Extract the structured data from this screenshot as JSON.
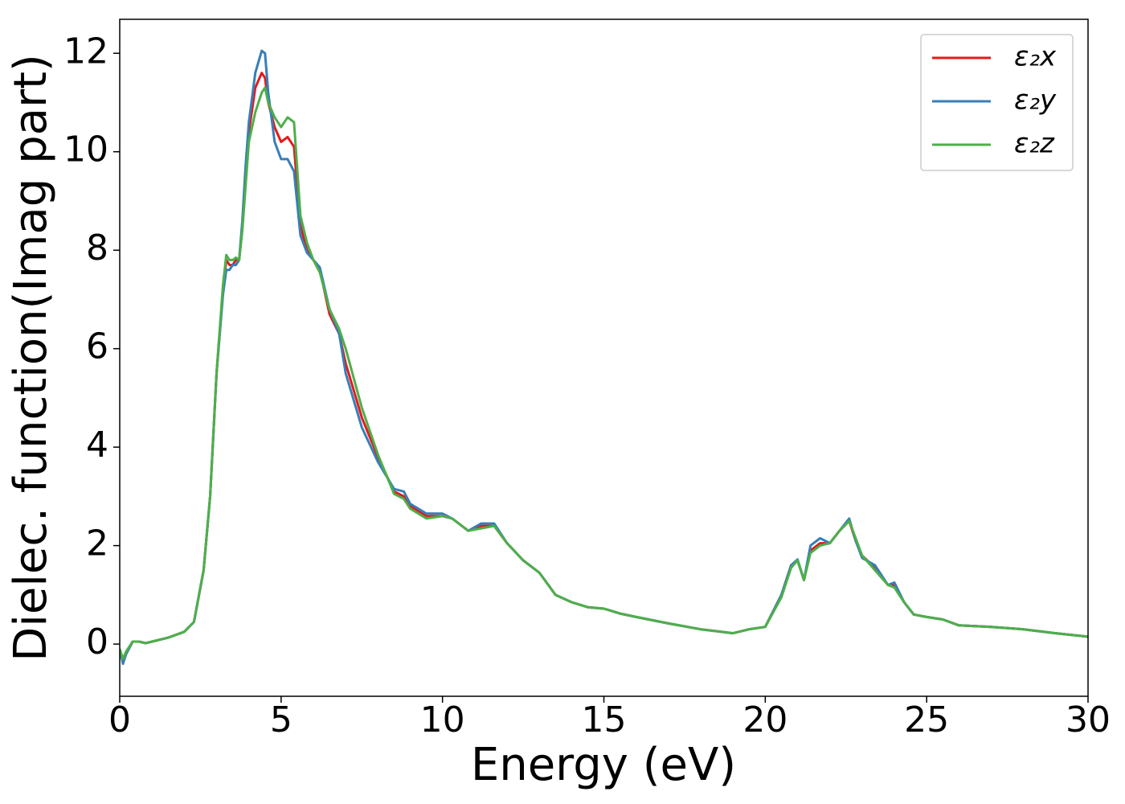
{
  "chart_data": {
    "type": "line",
    "xlabel": "Energy (eV)",
    "ylabel": "Dielec. function(Imag part)",
    "x": [
      0,
      0.1,
      0.2,
      0.4,
      0.6,
      0.8,
      1.0,
      1.5,
      2.0,
      2.3,
      2.6,
      2.8,
      3.0,
      3.2,
      3.3,
      3.4,
      3.5,
      3.6,
      3.7,
      3.8,
      3.9,
      4.0,
      4.2,
      4.4,
      4.5,
      4.6,
      4.8,
      5.0,
      5.2,
      5.4,
      5.6,
      5.8,
      6.0,
      6.2,
      6.5,
      6.8,
      7.0,
      7.5,
      8.0,
      8.5,
      8.8,
      9.0,
      9.5,
      10.0,
      10.3,
      10.8,
      11.2,
      11.6,
      12.0,
      12.5,
      13.0,
      13.5,
      14,
      14.5,
      15,
      15.5,
      16,
      17,
      18,
      19,
      19.5,
      20,
      20.5,
      20.8,
      21.0,
      21.2,
      21.4,
      21.7,
      22.0,
      22.3,
      22.6,
      22.8,
      23.0,
      23.4,
      23.8,
      24.0,
      24.3,
      24.6,
      25,
      25.5,
      26,
      27,
      28,
      29,
      30
    ],
    "series": [
      {
        "name": "ε₂x",
        "color": "#e41a1c",
        "values": [
          -0.1,
          -0.35,
          -0.2,
          0.05,
          0.05,
          0.02,
          0.05,
          0.13,
          0.25,
          0.45,
          1.5,
          3.0,
          5.5,
          7.2,
          7.8,
          7.7,
          7.7,
          7.8,
          7.8,
          8.5,
          9.5,
          10.4,
          11.3,
          11.6,
          11.5,
          11.0,
          10.5,
          10.2,
          10.3,
          10.1,
          8.5,
          8.0,
          7.8,
          7.6,
          6.7,
          6.3,
          5.7,
          4.6,
          3.8,
          3.1,
          3.0,
          2.8,
          2.6,
          2.6,
          2.55,
          2.3,
          2.4,
          2.4,
          2.05,
          1.7,
          1.45,
          1.0,
          0.85,
          0.75,
          0.72,
          0.62,
          0.55,
          0.42,
          0.3,
          0.22,
          0.3,
          0.35,
          1.0,
          1.6,
          1.7,
          1.3,
          1.9,
          2.05,
          2.05,
          2.3,
          2.5,
          2.1,
          1.8,
          1.55,
          1.2,
          1.2,
          0.85,
          0.6,
          0.55,
          0.5,
          0.38,
          0.35,
          0.3,
          0.22,
          0.15
        ]
      },
      {
        "name": "ε₂y",
        "color": "#377eb8",
        "values": [
          -0.1,
          -0.4,
          -0.2,
          0.05,
          0.05,
          0.02,
          0.05,
          0.13,
          0.25,
          0.45,
          1.5,
          3.0,
          5.5,
          7.1,
          7.6,
          7.6,
          7.7,
          7.7,
          7.8,
          8.6,
          9.7,
          10.6,
          11.6,
          12.05,
          12.0,
          11.2,
          10.2,
          9.85,
          9.85,
          9.6,
          8.3,
          7.95,
          7.8,
          7.65,
          6.8,
          6.3,
          5.5,
          4.4,
          3.7,
          3.15,
          3.1,
          2.85,
          2.65,
          2.65,
          2.55,
          2.3,
          2.45,
          2.45,
          2.05,
          1.7,
          1.45,
          1.0,
          0.85,
          0.75,
          0.72,
          0.62,
          0.55,
          0.42,
          0.3,
          0.22,
          0.3,
          0.35,
          1.0,
          1.6,
          1.72,
          1.3,
          2.0,
          2.15,
          2.05,
          2.3,
          2.55,
          2.1,
          1.75,
          1.6,
          1.2,
          1.25,
          0.85,
          0.6,
          0.55,
          0.5,
          0.38,
          0.35,
          0.3,
          0.22,
          0.15
        ]
      },
      {
        "name": "ε₂z",
        "color": "#4daf4a",
        "values": [
          -0.1,
          -0.3,
          -0.15,
          0.05,
          0.05,
          0.02,
          0.05,
          0.13,
          0.25,
          0.45,
          1.5,
          3.0,
          5.5,
          7.3,
          7.9,
          7.8,
          7.8,
          7.85,
          7.8,
          8.4,
          9.3,
          10.2,
          10.8,
          11.2,
          11.3,
          11.0,
          10.7,
          10.5,
          10.7,
          10.6,
          8.7,
          8.15,
          7.8,
          7.55,
          6.8,
          6.4,
          6.0,
          4.8,
          3.85,
          3.05,
          2.95,
          2.75,
          2.55,
          2.6,
          2.55,
          2.3,
          2.35,
          2.4,
          2.05,
          1.7,
          1.45,
          1.0,
          0.85,
          0.75,
          0.72,
          0.62,
          0.55,
          0.42,
          0.3,
          0.22,
          0.3,
          0.35,
          0.95,
          1.55,
          1.7,
          1.3,
          1.85,
          2.0,
          2.05,
          2.3,
          2.5,
          2.15,
          1.8,
          1.5,
          1.2,
          1.15,
          0.85,
          0.6,
          0.55,
          0.5,
          0.38,
          0.35,
          0.3,
          0.22,
          0.15
        ]
      }
    ],
    "xlim": [
      0,
      30
    ],
    "xticks": [
      0,
      5,
      10,
      15,
      20,
      25,
      30
    ],
    "ylim": [
      -1.06,
      12.69
    ],
    "yticks": [
      0,
      2,
      4,
      6,
      8,
      10,
      12
    ],
    "grid": false,
    "legend": "upper right"
  }
}
